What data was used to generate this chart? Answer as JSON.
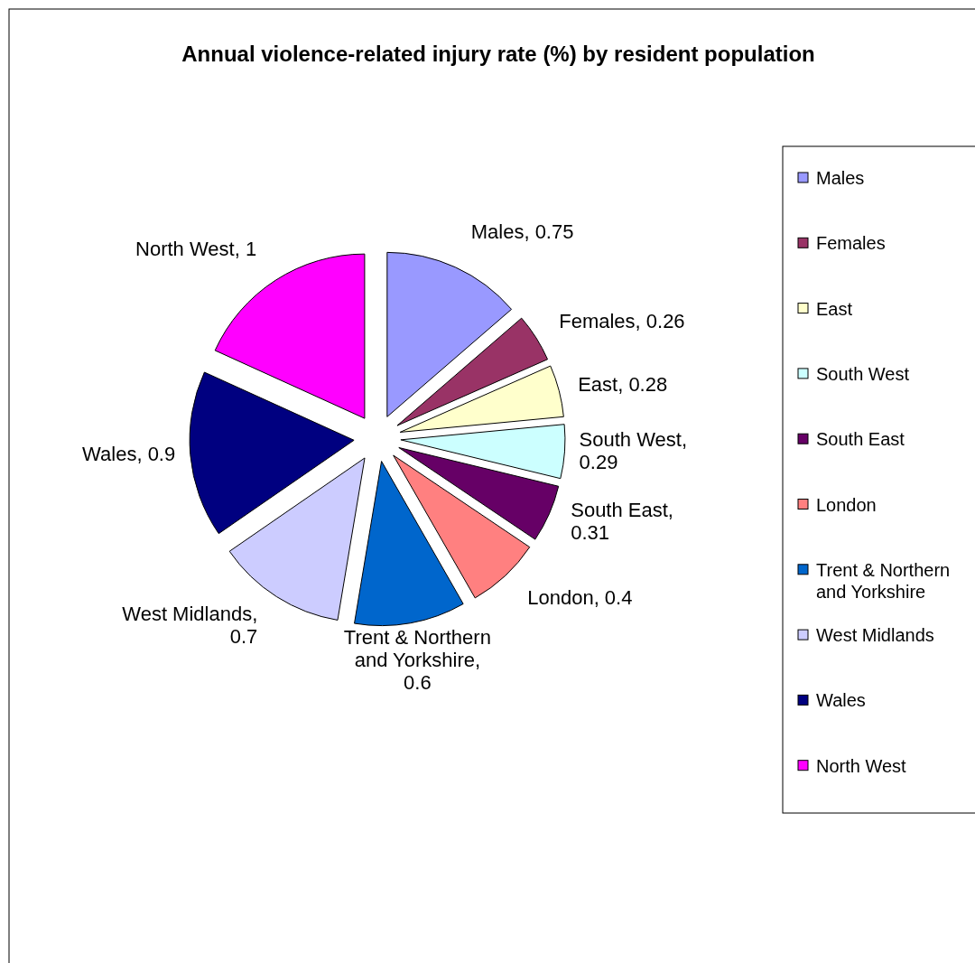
{
  "chart_data": {
    "type": "pie",
    "title": "Annual violence-related injury rate (%) by resident population",
    "categories": [
      "Males",
      "Females",
      "East",
      "South West",
      "South East",
      "London",
      "Trent & Northern and Yorkshire",
      "West Midlands",
      "Wales",
      "North West"
    ],
    "values": [
      0.75,
      0.26,
      0.28,
      0.29,
      0.31,
      0.4,
      0.6,
      0.7,
      0.9,
      1
    ],
    "value_labels": [
      "Males, 0.75",
      "Females, 0.26",
      "East, 0.28",
      "South West, 0.29",
      "South East, 0.31",
      "London, 0.4",
      "Trent & Northern and Yorkshire, 0.6",
      "West Midlands, 0.7",
      "Wales, 0.9",
      "North West, 1"
    ],
    "colors": [
      "#9999ff",
      "#993366",
      "#ffffcc",
      "#ccffff",
      "#660066",
      "#ff8080",
      "#0066cc",
      "#ccccff",
      "#000080",
      "#ff00ff"
    ],
    "legend": "right"
  }
}
